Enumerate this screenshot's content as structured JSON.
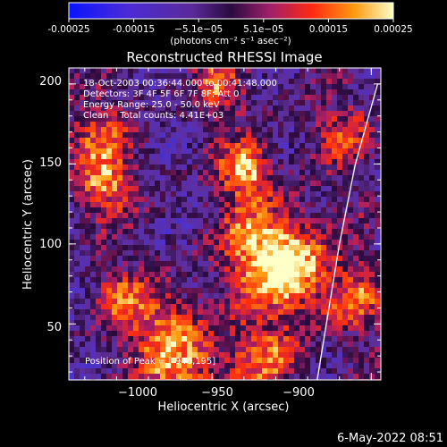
{
  "chart_data": {
    "type": "heatmap",
    "title": "Reconstructed RHESSI Image",
    "xlabel": "Heliocentric X (arcsec)",
    "ylabel": "Heliocentric Y (arcsec)",
    "xlim": [
      -1045,
      -947
    ],
    "ylim": [
      15,
      210
    ],
    "xticks": [
      -1000,
      -950,
      -900
    ],
    "xtick_labels": [
      "−1000",
      "−950",
      "−900"
    ],
    "yticks": [
      50,
      100,
      150,
      200
    ],
    "ytick_labels": [
      "50",
      "100",
      "150",
      "200"
    ],
    "colorbar": {
      "range": [
        -0.00025,
        0.00025
      ],
      "tick_labels": [
        "-0.00025",
        "-0.00015",
        "−5.1e−05",
        "5.1e−05",
        "0.00015",
        "0.00025"
      ],
      "unit_label": "(photons cm⁻² s⁻¹ asec⁻²)"
    },
    "info_lines": [
      "18-Oct-2003 00:36:44.000 to 00:41:48.000",
      "Detectors: 3F 4F 5F 6F 7F 8F; Att 0",
      "Energy Range: 25.0 - 50.0 keV",
      "Clean    Total counts: 4.41E+03"
    ],
    "peak_label": "Position of Peak = [-946,195]",
    "peak": {
      "x": -946,
      "y": 195
    },
    "limb_line": [
      {
        "x": -967,
        "y": 15
      },
      {
        "x": -960,
        "y": 100
      },
      {
        "x": -955,
        "y": 150
      },
      {
        "x": -948,
        "y": 200
      }
    ]
  },
  "footer": {
    "timestamp": "6-May-2022 08:51"
  }
}
